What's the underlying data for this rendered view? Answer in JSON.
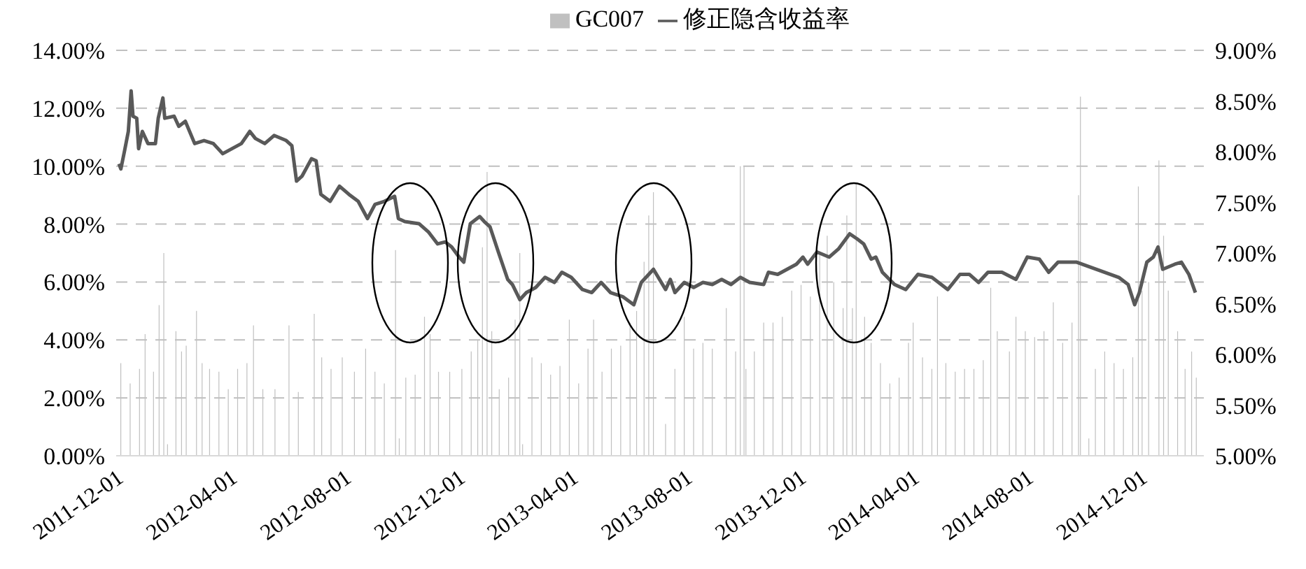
{
  "chart_data": {
    "type": "bar",
    "xlim": [
      "2011-11-28",
      "2015-02-04"
    ],
    "xticks": [
      "2011-12-01",
      "2012-04-01",
      "2012-08-01",
      "2012-12-01",
      "2013-04-01",
      "2013-08-01",
      "2013-12-01",
      "2014-04-01",
      "2014-08-01",
      "2014-12-01"
    ],
    "ylim": [
      0,
      14
    ],
    "yticks": [
      {
        "value": 0,
        "label": "0.00%"
      },
      {
        "value": 2,
        "label": "2.00%"
      },
      {
        "value": 4,
        "label": "4.00%"
      },
      {
        "value": 6,
        "label": "6.00%"
      },
      {
        "value": 8,
        "label": "8.00%"
      },
      {
        "value": 10,
        "label": "10.00%"
      },
      {
        "value": 12,
        "label": "12.00%"
      },
      {
        "value": 14,
        "label": "14.00%"
      }
    ],
    "y2lim": [
      5,
      9
    ],
    "y2ticks": [
      {
        "value": 5,
        "label": "5.00%"
      },
      {
        "value": 5.5,
        "label": "5.50%"
      },
      {
        "value": 6,
        "label": "6.00%"
      },
      {
        "value": 6.5,
        "label": "6.50%"
      },
      {
        "value": 7,
        "label": "7.00%"
      },
      {
        "value": 7.5,
        "label": "7.50%"
      },
      {
        "value": 8,
        "label": "8.00%"
      },
      {
        "value": 8.5,
        "label": "8.50%"
      },
      {
        "value": 9,
        "label": "9.00%"
      }
    ],
    "grid": "y",
    "legend": "top",
    "series": [
      {
        "name": "GC007",
        "color": "#c0c0c0",
        "x": [
          "2011-12-03",
          "2011-12-13",
          "2011-12-23",
          "2011-12-29",
          "2012-01-07",
          "2012-01-13",
          "2012-01-18",
          "2012-01-22",
          "2012-01-31",
          "2012-02-06",
          "2012-02-11",
          "2012-02-22",
          "2012-02-28",
          "2012-03-07",
          "2012-03-17",
          "2012-03-27",
          "2012-04-06",
          "2012-04-16",
          "2012-04-23",
          "2012-05-03",
          "2012-05-16",
          "2012-05-31",
          "2012-06-10",
          "2012-06-27",
          "2012-07-05",
          "2012-07-15",
          "2012-07-27",
          "2012-08-09",
          "2012-08-21",
          "2012-08-31",
          "2012-09-10",
          "2012-09-22",
          "2012-09-26",
          "2012-10-03",
          "2012-10-13",
          "2012-10-23",
          "2012-10-29",
          "2012-11-07",
          "2012-11-19",
          "2012-12-02",
          "2012-12-12",
          "2012-12-19",
          "2012-12-24",
          "2012-12-29",
          "2013-01-03",
          "2013-01-11",
          "2013-01-21",
          "2013-01-28",
          "2013-02-02",
          "2013-02-05",
          "2013-02-15",
          "2013-02-25",
          "2013-03-07",
          "2013-03-17",
          "2013-03-27",
          "2013-04-06",
          "2013-04-16",
          "2013-04-22",
          "2013-05-01",
          "2013-05-11",
          "2013-05-21",
          "2013-05-31",
          "2013-06-07",
          "2013-06-15",
          "2013-06-20",
          "2013-06-25",
          "2013-07-08",
          "2013-07-18",
          "2013-07-28",
          "2013-08-07",
          "2013-08-17",
          "2013-08-27",
          "2013-09-11",
          "2013-09-21",
          "2013-09-26",
          "2013-09-30",
          "2013-10-02",
          "2013-10-11",
          "2013-10-21",
          "2013-10-31",
          "2013-11-10",
          "2013-11-20",
          "2013-11-30",
          "2013-12-10",
          "2013-12-20",
          "2013-12-28",
          "2014-01-04",
          "2014-01-14",
          "2014-01-18",
          "2014-01-24",
          "2014-01-28",
          "2014-02-06",
          "2014-02-13",
          "2014-02-23",
          "2014-03-05",
          "2014-03-15",
          "2014-03-25",
          "2014-03-30",
          "2014-04-09",
          "2014-04-19",
          "2014-04-25",
          "2014-05-04",
          "2014-05-14",
          "2014-05-24",
          "2014-06-03",
          "2014-06-13",
          "2014-06-21",
          "2014-06-28",
          "2014-07-11",
          "2014-07-18",
          "2014-07-28",
          "2014-08-07",
          "2014-08-17",
          "2014-08-27",
          "2014-09-06",
          "2014-09-16",
          "2014-09-23",
          "2014-09-25",
          "2014-10-04",
          "2014-10-11",
          "2014-10-21",
          "2014-10-31",
          "2014-11-10",
          "2014-11-20",
          "2014-11-26",
          "2014-11-30",
          "2014-12-07",
          "2014-12-18",
          "2014-12-23",
          "2014-12-28",
          "2015-01-07",
          "2015-01-15",
          "2015-01-22",
          "2015-01-27"
        ],
        "values": [
          3.2,
          2.5,
          3.0,
          4.2,
          2.9,
          5.2,
          7.0,
          0.4,
          4.3,
          3.6,
          3.8,
          5.0,
          3.2,
          3.0,
          2.9,
          2.3,
          3.0,
          3.2,
          4.5,
          2.3,
          2.3,
          4.5,
          2.2,
          4.9,
          3.4,
          3.0,
          3.4,
          2.9,
          3.7,
          2.9,
          2.5,
          7.1,
          0.6,
          2.7,
          2.8,
          4.8,
          4.2,
          2.9,
          2.9,
          3.0,
          3.6,
          4.0,
          7.2,
          9.8,
          4.3,
          2.3,
          2.7,
          4.7,
          7.0,
          0.4,
          3.4,
          3.2,
          2.8,
          3.1,
          4.7,
          2.5,
          3.7,
          4.7,
          2.9,
          3.7,
          3.8,
          4.6,
          5.0,
          6.7,
          8.3,
          9.1,
          1.1,
          3.0,
          4.8,
          3.7,
          3.9,
          3.7,
          5.1,
          3.6,
          10.0,
          10.0,
          3.0,
          3.6,
          4.6,
          4.6,
          4.8,
          5.7,
          5.9,
          5.5,
          7.0,
          7.6,
          6.0,
          5.1,
          8.3,
          5.1,
          9.4,
          4.8,
          3.9,
          3.2,
          2.5,
          2.7,
          3.9,
          4.6,
          3.4,
          3.0,
          5.5,
          3.2,
          2.9,
          3.0,
          3.0,
          3.3,
          5.8,
          4.3,
          3.6,
          4.8,
          4.3,
          4.1,
          4.3,
          5.3,
          3.9,
          4.6,
          9.0,
          12.4,
          0.6,
          3.0,
          3.6,
          3.2,
          3.0,
          3.4,
          9.3,
          5.7,
          6.0,
          10.2,
          7.6,
          5.7,
          4.3,
          3.0,
          3.6,
          2.7
        ]
      },
      {
        "name": "修正隐含收益率",
        "type": "line",
        "axis": "y2",
        "color": "#595959",
        "x": [
          "2011-12-01",
          "2011-12-03",
          "2011-12-07",
          "2011-12-11",
          "2011-12-14",
          "2011-12-16",
          "2011-12-20",
          "2011-12-22",
          "2011-12-26",
          "2012-01-01",
          "2012-01-09",
          "2012-01-12",
          "2012-01-17",
          "2012-01-19",
          "2012-01-29",
          "2012-02-03",
          "2012-02-10",
          "2012-02-20",
          "2012-03-01",
          "2012-03-11",
          "2012-03-21",
          "2012-03-31",
          "2012-04-10",
          "2012-04-19",
          "2012-04-25",
          "2012-05-05",
          "2012-05-15",
          "2012-05-28",
          "2012-06-03",
          "2012-06-08",
          "2012-06-14",
          "2012-06-24",
          "2012-06-29",
          "2012-07-04",
          "2012-07-14",
          "2012-07-24",
          "2012-08-03",
          "2012-08-13",
          "2012-08-23",
          "2012-08-31",
          "2012-09-10",
          "2012-09-21",
          "2012-09-25",
          "2012-10-02",
          "2012-10-17",
          "2012-10-27",
          "2012-11-06",
          "2012-11-14",
          "2012-11-21",
          "2012-11-29",
          "2012-12-04",
          "2012-12-11",
          "2012-12-21",
          "2012-12-26",
          "2013-01-01",
          "2013-01-10",
          "2013-01-20",
          "2013-01-25",
          "2013-02-02",
          "2013-02-09",
          "2013-02-19",
          "2013-03-01",
          "2013-03-11",
          "2013-03-19",
          "2013-03-29",
          "2013-04-10",
          "2013-04-20",
          "2013-04-30",
          "2013-05-10",
          "2013-05-23",
          "2013-06-04",
          "2013-06-12",
          "2013-06-25",
          "2013-07-08",
          "2013-07-13",
          "2013-07-18",
          "2013-07-28",
          "2013-08-07",
          "2013-08-17",
          "2013-08-27",
          "2013-09-06",
          "2013-09-16",
          "2013-09-26",
          "2013-10-06",
          "2013-10-21",
          "2013-10-26",
          "2013-11-05",
          "2013-11-15",
          "2013-11-25",
          "2013-12-02",
          "2013-12-07",
          "2013-12-17",
          "2013-12-30",
          "2014-01-09",
          "2014-01-21",
          "2014-01-29",
          "2014-02-05",
          "2014-02-13",
          "2014-02-18",
          "2014-02-25",
          "2014-03-10",
          "2014-03-22",
          "2014-04-04",
          "2014-04-19",
          "2014-05-06",
          "2014-05-19",
          "2014-05-29",
          "2014-06-08",
          "2014-06-18",
          "2014-07-03",
          "2014-07-18",
          "2014-07-30",
          "2014-08-12",
          "2014-08-22",
          "2014-09-01",
          "2014-09-21",
          "2014-10-06",
          "2014-10-21",
          "2014-11-05",
          "2014-11-15",
          "2014-11-22",
          "2014-11-27",
          "2014-12-05",
          "2014-12-12",
          "2014-12-17",
          "2014-12-22",
          "2015-01-04",
          "2015-01-11",
          "2015-01-19",
          "2015-01-26"
        ],
        "values": [
          7.88,
          7.83,
          8.01,
          8.2,
          8.6,
          8.35,
          8.33,
          8.03,
          8.2,
          8.08,
          8.08,
          8.33,
          8.53,
          8.33,
          8.35,
          8.25,
          8.3,
          8.08,
          8.11,
          8.08,
          7.98,
          8.03,
          8.08,
          8.2,
          8.13,
          8.08,
          8.16,
          8.11,
          8.06,
          7.71,
          7.76,
          7.93,
          7.91,
          7.58,
          7.51,
          7.66,
          7.58,
          7.51,
          7.34,
          7.48,
          7.51,
          7.56,
          7.34,
          7.31,
          7.29,
          7.21,
          7.09,
          7.11,
          7.06,
          6.96,
          6.91,
          7.29,
          7.36,
          7.31,
          7.26,
          7.01,
          6.74,
          6.69,
          6.54,
          6.61,
          6.66,
          6.76,
          6.71,
          6.81,
          6.76,
          6.64,
          6.61,
          6.71,
          6.61,
          6.57,
          6.49,
          6.71,
          6.84,
          6.64,
          6.74,
          6.61,
          6.71,
          6.66,
          6.71,
          6.69,
          6.74,
          6.69,
          6.76,
          6.71,
          6.69,
          6.81,
          6.79,
          6.84,
          6.89,
          6.96,
          6.89,
          7.01,
          6.96,
          7.04,
          7.19,
          7.14,
          7.09,
          6.94,
          6.96,
          6.81,
          6.69,
          6.64,
          6.79,
          6.76,
          6.64,
          6.79,
          6.79,
          6.71,
          6.81,
          6.81,
          6.74,
          6.96,
          6.94,
          6.81,
          6.91,
          6.91,
          6.86,
          6.81,
          6.76,
          6.69,
          6.49,
          6.61,
          6.91,
          6.96,
          7.06,
          6.84,
          6.89,
          6.91,
          6.79,
          6.61
        ]
      }
    ]
  }
}
